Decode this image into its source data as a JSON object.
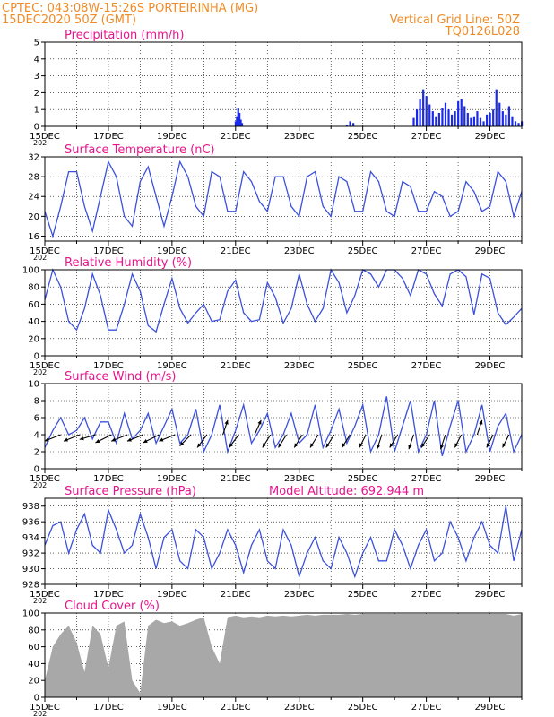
{
  "header": {
    "line1_left": "CPTEC:   043:08W-15:26S   PORTEIRINHA (MG)",
    "line2_left": "15DEC2020 50Z (GMT)",
    "line1_right": "Vertical Grid Line: 50Z",
    "line2_right": "TQ0126L028"
  },
  "colors": {
    "header": "#f08c28",
    "title": "#e8148c",
    "line": "#3c50dc",
    "bar": "#1a2ae8",
    "cloud": "#a8a8a8"
  },
  "x_axis": {
    "labels": [
      "15DEC",
      "17DEC",
      "19DEC",
      "21DEC",
      "23DEC",
      "25DEC",
      "27DEC",
      "29DEC"
    ],
    "year_fragment": "202"
  },
  "chart_data": [
    {
      "type": "bar",
      "title": "Precipitation (mm/h)",
      "ylim": [
        0,
        5
      ],
      "yticks": [
        "0",
        "1",
        "2",
        "3",
        "4",
        "5"
      ],
      "x_days": [
        0,
        15
      ],
      "x": [
        6.0,
        6.04,
        6.08,
        6.12,
        6.16,
        6.2,
        9.5,
        9.6,
        9.7,
        11.6,
        11.7,
        11.8,
        11.9,
        12.0,
        12.1,
        12.2,
        12.3,
        12.4,
        12.5,
        12.6,
        12.7,
        12.8,
        12.9,
        13.0,
        13.1,
        13.2,
        13.3,
        13.4,
        13.5,
        13.6,
        13.7,
        13.8,
        13.9,
        14.0,
        14.1,
        14.2,
        14.3,
        14.4,
        14.5,
        14.6,
        14.7,
        14.8,
        14.9,
        15.0
      ],
      "values": [
        0.3,
        0.6,
        1.1,
        0.8,
        0.4,
        0.2,
        0.1,
        0.3,
        0.2,
        0.5,
        1.0,
        1.6,
        2.2,
        1.8,
        1.3,
        0.9,
        0.6,
        0.8,
        1.1,
        1.4,
        1.0,
        0.7,
        0.9,
        1.5,
        1.6,
        1.2,
        0.8,
        0.5,
        0.6,
        0.9,
        0.5,
        0.3,
        0.7,
        0.8,
        1.0,
        2.2,
        1.4,
        0.9,
        0.7,
        1.2,
        0.6,
        0.3,
        0.2,
        0.3
      ]
    },
    {
      "type": "line",
      "title": "Surface Temperature (nC)",
      "ylim": [
        15,
        32
      ],
      "yticks": [
        "16",
        "20",
        "24",
        "28",
        "32"
      ],
      "x": [
        0,
        0.25,
        0.5,
        0.75,
        1,
        1.25,
        1.5,
        1.75,
        2,
        2.25,
        2.5,
        2.75,
        3,
        3.25,
        3.5,
        3.75,
        4,
        4.25,
        4.5,
        4.75,
        5,
        5.25,
        5.5,
        5.75,
        6,
        6.25,
        6.5,
        6.75,
        7,
        7.25,
        7.5,
        7.75,
        8,
        8.25,
        8.5,
        8.75,
        9,
        9.25,
        9.5,
        9.75,
        10,
        10.25,
        10.5,
        10.75,
        11,
        11.25,
        11.5,
        11.75,
        12,
        12.25,
        12.5,
        12.75,
        13,
        13.25,
        13.5,
        13.75,
        14,
        14.25,
        14.5,
        14.75,
        15
      ],
      "y": [
        21,
        16,
        22,
        29,
        29,
        22,
        17,
        24,
        31,
        28,
        20,
        18,
        27,
        30,
        24,
        18,
        24,
        31,
        28,
        22,
        20,
        29,
        28,
        21,
        21,
        29,
        27,
        23,
        21,
        28,
        28,
        22,
        20,
        28,
        29,
        22,
        20,
        28,
        27,
        21,
        21,
        29,
        27,
        21,
        20,
        27,
        26,
        21,
        21,
        25,
        24,
        20,
        21,
        27,
        25,
        21,
        22,
        29,
        27,
        20,
        25
      ]
    },
    {
      "type": "line",
      "title": "Relative Humidity (%)",
      "ylim": [
        0,
        100
      ],
      "yticks": [
        "0",
        "20",
        "40",
        "60",
        "80",
        "100"
      ],
      "x": [
        0,
        0.25,
        0.5,
        0.75,
        1,
        1.25,
        1.5,
        1.75,
        2,
        2.25,
        2.5,
        2.75,
        3,
        3.25,
        3.5,
        3.75,
        4,
        4.25,
        4.5,
        4.75,
        5,
        5.25,
        5.5,
        5.75,
        6,
        6.25,
        6.5,
        6.75,
        7,
        7.25,
        7.5,
        7.75,
        8,
        8.25,
        8.5,
        8.75,
        9,
        9.25,
        9.5,
        9.75,
        10,
        10.25,
        10.5,
        10.75,
        11,
        11.25,
        11.5,
        11.75,
        12,
        12.25,
        12.5,
        12.75,
        13,
        13.25,
        13.5,
        13.75,
        14,
        14.25,
        14.5,
        14.75,
        15
      ],
      "y": [
        65,
        100,
        80,
        40,
        30,
        55,
        95,
        70,
        30,
        30,
        60,
        95,
        75,
        35,
        28,
        60,
        90,
        55,
        38,
        50,
        60,
        40,
        42,
        75,
        88,
        50,
        40,
        42,
        85,
        68,
        38,
        55,
        95,
        60,
        40,
        55,
        100,
        85,
        50,
        70,
        100,
        95,
        80,
        100,
        100,
        90,
        70,
        100,
        95,
        72,
        58,
        95,
        100,
        92,
        48,
        95,
        90,
        50,
        36,
        45,
        55
      ]
    },
    {
      "type": "line",
      "title": "Surface Wind (m/s)",
      "ylim": [
        0,
        10
      ],
      "yticks": [
        "0",
        "2",
        "4",
        "6",
        "8",
        "10"
      ],
      "x": [
        0,
        0.25,
        0.5,
        0.75,
        1,
        1.25,
        1.5,
        1.75,
        2,
        2.25,
        2.5,
        2.75,
        3,
        3.25,
        3.5,
        3.75,
        4,
        4.25,
        4.5,
        4.75,
        5,
        5.25,
        5.5,
        5.75,
        6,
        6.25,
        6.5,
        6.75,
        7,
        7.25,
        7.5,
        7.75,
        8,
        8.25,
        8.5,
        8.75,
        9,
        9.25,
        9.5,
        9.75,
        10,
        10.25,
        10.5,
        10.75,
        11,
        11.25,
        11.5,
        11.75,
        12,
        12.25,
        12.5,
        12.75,
        13,
        13.25,
        13.5,
        13.75,
        14,
        14.25,
        14.5,
        14.75,
        15
      ],
      "y": [
        2.5,
        4.5,
        6,
        4,
        4.5,
        6,
        3.5,
        5.5,
        5.5,
        3,
        6.5,
        3.5,
        4.5,
        6.5,
        3,
        5,
        7,
        3,
        4,
        7,
        2,
        4,
        7.5,
        2,
        4.5,
        7.5,
        3,
        4.5,
        6.5,
        2.5,
        4,
        6.5,
        3,
        4,
        7.5,
        2.5,
        4.5,
        7,
        3,
        5,
        7.5,
        2,
        4,
        8.5,
        2,
        5,
        8,
        2,
        4,
        8,
        1.5,
        5,
        8,
        2,
        4,
        7.5,
        2,
        5,
        6.5,
        2,
        4
      ],
      "arrow_x": [
        0.5,
        1.1,
        1.6,
        2.1,
        2.6,
        3.1,
        3.6,
        4.1,
        4.6,
        5.1,
        5.6,
        6.1,
        6.6,
        7.1,
        7.6,
        8.1,
        8.6,
        9.1,
        9.6,
        10.1,
        10.6,
        11.1,
        11.6,
        12.1,
        12.6,
        13.1,
        13.6,
        14.1,
        14.6
      ],
      "arrow_u": [
        -1,
        -1,
        -1,
        -1,
        -1,
        -1,
        -1,
        -1,
        -0.7,
        -0.6,
        0.3,
        -0.6,
        0.4,
        -0.5,
        -0.5,
        -0.5,
        -0.5,
        -0.5,
        -0.5,
        -0.4,
        -0.3,
        -0.5,
        -0.3,
        -0.5,
        -0.3,
        -0.4,
        0.3,
        -0.4,
        -0.4
      ],
      "arrow_v": [
        -0.4,
        -0.4,
        -0.3,
        -0.5,
        -0.4,
        -0.4,
        -0.5,
        -0.4,
        -0.7,
        -0.8,
        0.9,
        -0.8,
        0.9,
        -0.8,
        -0.8,
        -0.8,
        -0.8,
        -0.8,
        -0.8,
        -0.8,
        -0.9,
        -0.8,
        -0.9,
        -0.8,
        -0.9,
        -0.8,
        0.9,
        -0.8,
        -0.8
      ]
    },
    {
      "type": "line",
      "title": "Surface Pressure (hPa)",
      "annotation": "Model Altitude: 692.944 m",
      "ylim": [
        928,
        939
      ],
      "yticks": [
        "928",
        "930",
        "932",
        "934",
        "936",
        "938"
      ],
      "x": [
        0,
        0.25,
        0.5,
        0.75,
        1,
        1.25,
        1.5,
        1.75,
        2,
        2.25,
        2.5,
        2.75,
        3,
        3.25,
        3.5,
        3.75,
        4,
        4.25,
        4.5,
        4.75,
        5,
        5.25,
        5.5,
        5.75,
        6,
        6.25,
        6.5,
        6.75,
        7,
        7.25,
        7.5,
        7.75,
        8,
        8.25,
        8.5,
        8.75,
        9,
        9.25,
        9.5,
        9.75,
        10,
        10.25,
        10.5,
        10.75,
        11,
        11.25,
        11.5,
        11.75,
        12,
        12.25,
        12.5,
        12.75,
        13,
        13.25,
        13.5,
        13.75,
        14,
        14.25,
        14.5,
        14.75,
        15
      ],
      "y": [
        933,
        935.5,
        936,
        932,
        935,
        937,
        933,
        932,
        937.5,
        935,
        932,
        933,
        937,
        934,
        930,
        934,
        935,
        931,
        930,
        935,
        934,
        930,
        932,
        935,
        933,
        929.5,
        933,
        935,
        931,
        930,
        935,
        933,
        929,
        932,
        934,
        931,
        930,
        934,
        932,
        929,
        932,
        934,
        931,
        931,
        935,
        933,
        930,
        933,
        935,
        931,
        932,
        936,
        934,
        931,
        934,
        936,
        933,
        932,
        938,
        931,
        935
      ]
    },
    {
      "type": "area",
      "title": "Cloud Cover (%)",
      "ylim": [
        0,
        100
      ],
      "yticks": [
        "0",
        "20",
        "40",
        "60",
        "80",
        "100"
      ],
      "x": [
        0,
        0.25,
        0.5,
        0.75,
        1,
        1.25,
        1.5,
        1.75,
        2,
        2.25,
        2.5,
        2.75,
        3,
        3.25,
        3.5,
        3.75,
        4,
        4.25,
        4.5,
        4.75,
        5,
        5.25,
        5.5,
        5.75,
        6,
        6.25,
        6.5,
        6.75,
        7,
        7.25,
        7.5,
        7.75,
        8,
        8.25,
        8.5,
        8.75,
        9,
        9.25,
        9.5,
        9.75,
        10,
        10.25,
        10.5,
        10.75,
        11,
        11.25,
        11.5,
        11.75,
        12,
        12.25,
        12.5,
        12.75,
        13,
        13.25,
        13.5,
        13.75,
        14,
        14.25,
        14.5,
        14.75,
        15
      ],
      "y": [
        20,
        60,
        75,
        85,
        65,
        30,
        85,
        75,
        35,
        85,
        90,
        20,
        5,
        85,
        92,
        88,
        90,
        85,
        88,
        92,
        95,
        60,
        40,
        95,
        97,
        95,
        96,
        95,
        97,
        96,
        97,
        96,
        97,
        98,
        97,
        98,
        98,
        98,
        99,
        98,
        99,
        99,
        99,
        99,
        99,
        99,
        99,
        99,
        99,
        99,
        99,
        99,
        99,
        99,
        99,
        99,
        99,
        99,
        99,
        97,
        99
      ]
    }
  ]
}
